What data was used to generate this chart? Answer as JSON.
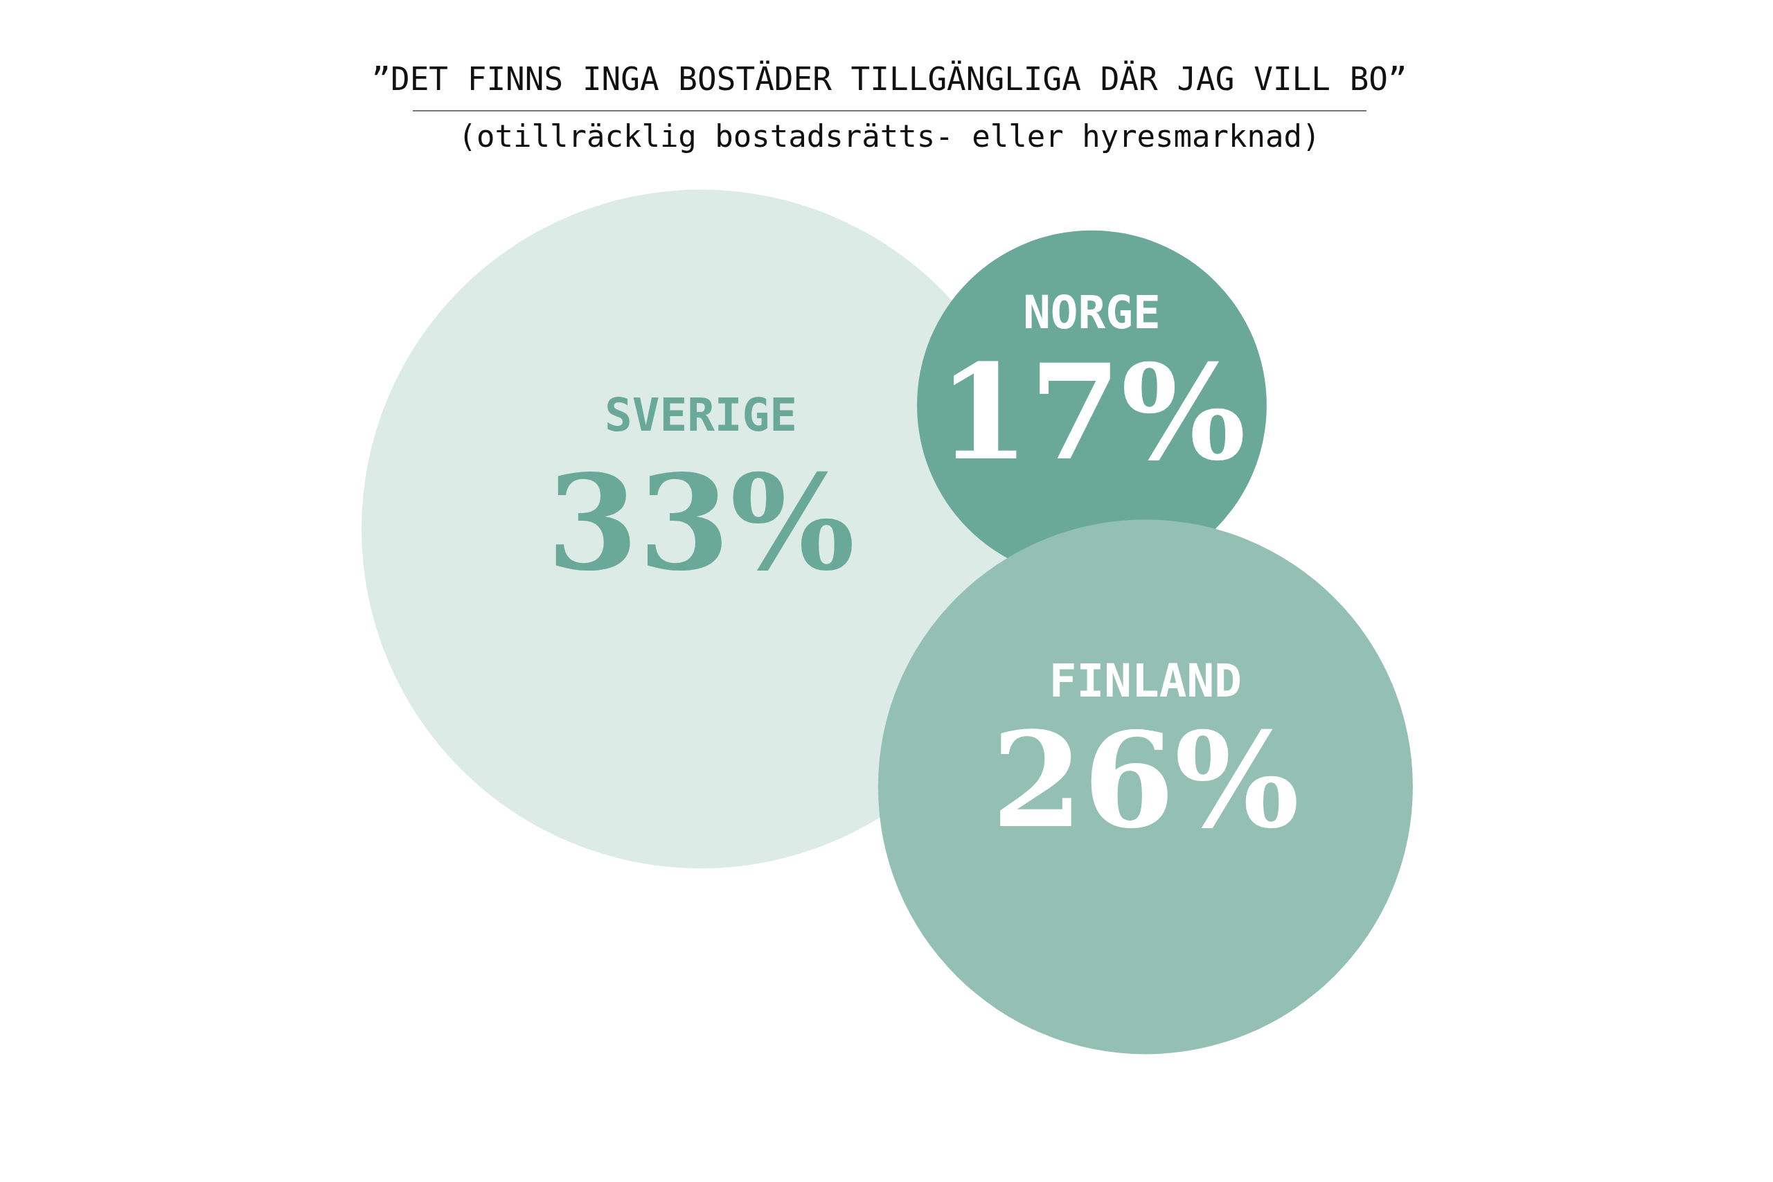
{
  "chart_data": {
    "type": "other",
    "title": "”DET FINNS INGA BOSTÄDER TILLGÄNGLIGA DÄR JAG VILL BO”",
    "subtitle": "(otillräcklig bostadsrätts- eller hyresmarknad)",
    "categories": [
      "SVERIGE",
      "NORGE",
      "FINLAND"
    ],
    "values": [
      33,
      17,
      26
    ],
    "value_labels": [
      "33%",
      "17%",
      "26%"
    ],
    "colors": [
      "#dcebe6",
      "#6aa998",
      "#93c0b3"
    ]
  }
}
